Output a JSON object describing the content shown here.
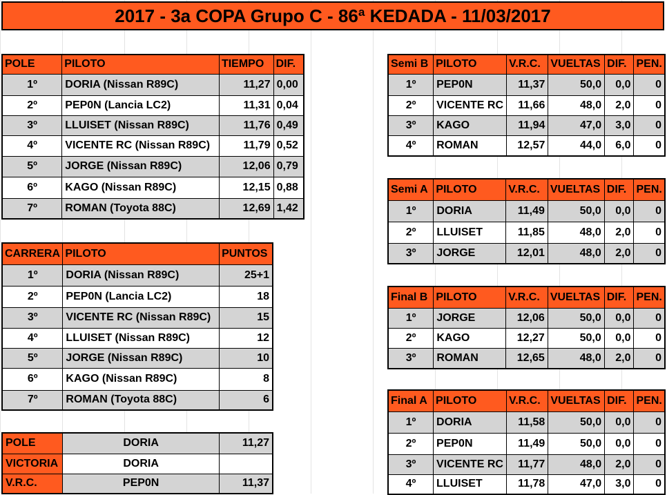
{
  "title": "2017 - 3a COPA Grupo C - 86ª KEDADA - 11/03/2017",
  "pole_table": {
    "headers": [
      "POLE",
      "PILOTO",
      "TIEMPO",
      "DIF."
    ],
    "rows": [
      [
        "1º",
        "DORIA (Nissan R89C)",
        "11,27",
        "0,00"
      ],
      [
        "2º",
        "PEP0N (Lancia LC2)",
        "11,31",
        "0,04"
      ],
      [
        "3º",
        "LLUISET (Nissan R89C)",
        "11,76",
        "0,49"
      ],
      [
        "4º",
        "VICENTE RC (Nissan R89C)",
        "11,79",
        "0,52"
      ],
      [
        "5º",
        "JORGE (Nissan R89C)",
        "12,06",
        "0,79"
      ],
      [
        "6º",
        "KAGO (Nissan R89C)",
        "12,15",
        "0,88"
      ],
      [
        "7º",
        "ROMAN (Toyota 88C)",
        "12,69",
        "1,42"
      ]
    ]
  },
  "carrera_table": {
    "headers": [
      "CARRERA",
      "PILOTO",
      "PUNTOS"
    ],
    "rows": [
      [
        "1º",
        "DORIA (Nissan R89C)",
        "25+1"
      ],
      [
        "2º",
        "PEP0N (Lancia LC2)",
        "18"
      ],
      [
        "3º",
        "VICENTE RC (Nissan R89C)",
        "15"
      ],
      [
        "4º",
        "LLUISET (Nissan R89C)",
        "12"
      ],
      [
        "5º",
        "JORGE (Nissan R89C)",
        "10"
      ],
      [
        "6º",
        "KAGO (Nissan R89C)",
        "8"
      ],
      [
        "7º",
        "ROMAN (Toyota 88C)",
        "6"
      ]
    ]
  },
  "summary_table": {
    "rows": [
      [
        "POLE",
        "DORIA",
        "11,27"
      ],
      [
        "VICTORIA",
        "DORIA",
        ""
      ],
      [
        "V.R.C.",
        "PEP0N",
        "11,37"
      ]
    ]
  },
  "semi_b": {
    "headers": [
      "Semi B",
      "PILOTO",
      "V.R.C.",
      "VUELTAS",
      "DIF.",
      "PEN."
    ],
    "rows": [
      [
        "1º",
        "PEP0N",
        "11,37",
        "50,0",
        "0,0",
        "0"
      ],
      [
        "2º",
        "VICENTE RC",
        "11,66",
        "48,0",
        "2,0",
        "0"
      ],
      [
        "3º",
        "KAGO",
        "11,94",
        "47,0",
        "3,0",
        "0"
      ],
      [
        "4º",
        "ROMAN",
        "12,57",
        "44,0",
        "6,0",
        "0"
      ]
    ]
  },
  "semi_a": {
    "headers": [
      "Semi A",
      "PILOTO",
      "V.R.C.",
      "VUELTAS",
      "DIF.",
      "PEN."
    ],
    "rows": [
      [
        "1º",
        "DORIA",
        "11,49",
        "50,0",
        "0,0",
        "0"
      ],
      [
        "2º",
        "LLUISET",
        "11,85",
        "48,0",
        "2,0",
        "0"
      ],
      [
        "3º",
        "JORGE",
        "12,01",
        "48,0",
        "2,0",
        "0"
      ]
    ]
  },
  "final_b": {
    "headers": [
      "Final B",
      "PILOTO",
      "V.R.C.",
      "VUELTAS",
      "DIF.",
      "PEN."
    ],
    "rows": [
      [
        "1º",
        "JORGE",
        "12,06",
        "50,0",
        "0,0",
        "0"
      ],
      [
        "2º",
        "KAGO",
        "12,27",
        "50,0",
        "0,0",
        "0"
      ],
      [
        "3º",
        "ROMAN",
        "12,65",
        "48,0",
        "2,0",
        "0"
      ]
    ]
  },
  "final_a": {
    "headers": [
      "Final A",
      "PILOTO",
      "V.R.C.",
      "VUELTAS",
      "DIF.",
      "PEN."
    ],
    "rows": [
      [
        "1º",
        "DORIA",
        "11,58",
        "50,0",
        "0,0",
        "0"
      ],
      [
        "2º",
        "PEP0N",
        "11,49",
        "50,0",
        "0,0",
        "0"
      ],
      [
        "3º",
        "VICENTE RC",
        "11,77",
        "48,0",
        "2,0",
        "0"
      ],
      [
        "4º",
        "LLUISET",
        "11,78",
        "47,0",
        "3,0",
        "0"
      ]
    ]
  },
  "colors": {
    "header": "#ff5a1f",
    "shade": "#d4d4d4"
  }
}
